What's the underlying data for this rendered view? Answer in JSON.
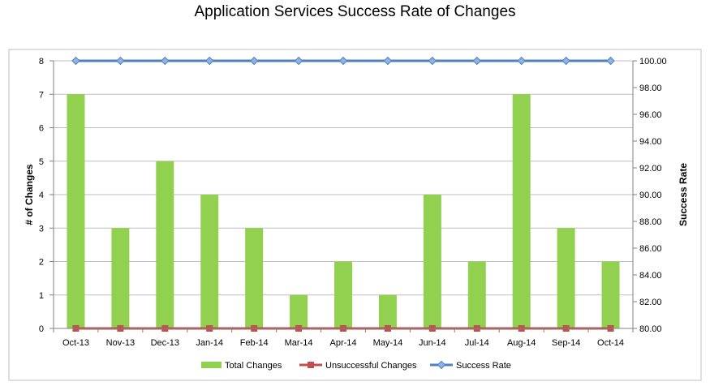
{
  "chart_data": {
    "type": "bar",
    "title": "Application Services Success Rate of Changes",
    "categories": [
      "Oct-13",
      "Nov-13",
      "Dec-13",
      "Jan-14",
      "Feb-14",
      "Mar-14",
      "Apr-14",
      "May-14",
      "Jun-14",
      "Jul-14",
      "Aug-14",
      "Sep-14",
      "Oct-14"
    ],
    "ylabel": "# of Changes",
    "y2label": "Success Rate",
    "ylim": [
      0,
      8
    ],
    "y2lim": [
      80,
      100
    ],
    "yticks": [
      "0",
      "1",
      "2",
      "3",
      "4",
      "5",
      "6",
      "7",
      "8"
    ],
    "y2ticks": [
      "80.00",
      "82.00",
      "84.00",
      "86.00",
      "88.00",
      "90.00",
      "92.00",
      "94.00",
      "96.00",
      "98.00",
      "100.00"
    ],
    "grid": true,
    "legend_position": "bottom",
    "series": [
      {
        "name": "Total Changes",
        "type": "bar",
        "axis": "left",
        "color": "#92D050",
        "values": [
          7,
          3,
          5,
          4,
          3,
          1,
          2,
          1,
          4,
          2,
          7,
          3,
          2
        ]
      },
      {
        "name": "Unsuccessful Changes",
        "type": "line",
        "axis": "left",
        "color": "#C0504D",
        "marker": "square",
        "values": [
          0,
          0,
          0,
          0,
          0,
          0,
          0,
          0,
          0,
          0,
          0,
          0,
          0
        ]
      },
      {
        "name": "Success Rate",
        "type": "line",
        "axis": "right",
        "color": "#4F81BD",
        "marker": "diamond",
        "values": [
          100,
          100,
          100,
          100,
          100,
          100,
          100,
          100,
          100,
          100,
          100,
          100,
          100
        ]
      }
    ]
  }
}
